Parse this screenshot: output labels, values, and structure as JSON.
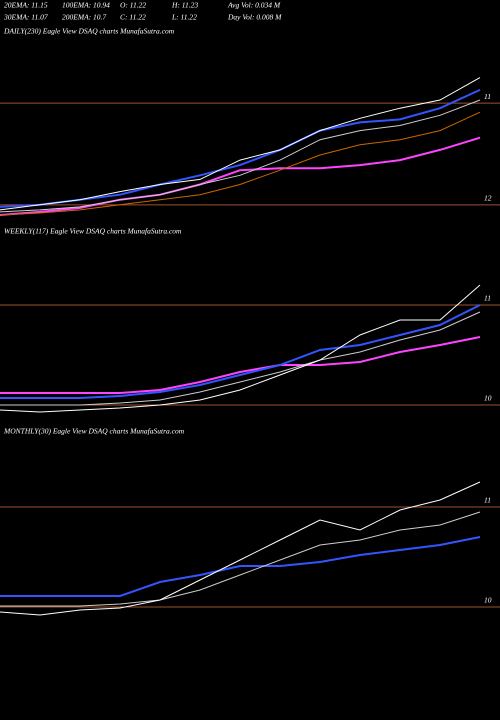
{
  "header": {
    "rows": [
      [
        "20EMA: 11.15",
        "100EMA: 10.94",
        "O: 11.22",
        "H: 11.23",
        "Avg Vol: 0.034  M"
      ],
      [
        "30EMA: 11.07",
        "200EMA: 10.7",
        "C: 11.22",
        "L: 11.22",
        "Day Vol: 0.008  M"
      ]
    ]
  },
  "chart_data": [
    {
      "type": "line",
      "title": "DAILY(230) Eagle  View  DSAQ charts MunafaSutra.com",
      "categories": [
        null,
        null,
        null,
        null,
        null,
        null,
        null,
        null,
        null,
        null,
        null,
        null,
        null
      ],
      "ylim": [
        12.1,
        10.38
      ],
      "yticks": [
        11,
        12
      ],
      "grid": true,
      "grid_color": "#a0522d",
      "series": [
        {
          "color": "#ff44ff",
          "values": [
            12.1,
            12.07,
            12.03,
            11.95,
            11.9,
            11.8,
            11.66,
            11.64,
            11.64,
            11.61,
            11.56,
            11.46,
            11.34
          ]
        },
        {
          "color": "#cc6600",
          "values": [
            12.1,
            12.08,
            12.05,
            12.0,
            11.95,
            11.9,
            11.8,
            11.66,
            11.51,
            11.41,
            11.36,
            11.27,
            11.09
          ]
        },
        {
          "color": "#cccccc",
          "values": [
            12.07,
            12.05,
            12.02,
            11.95,
            11.9,
            11.8,
            11.71,
            11.56,
            11.36,
            11.27,
            11.22,
            11.12,
            10.97
          ]
        },
        {
          "color": "#3355ff",
          "values": [
            12.02,
            12.0,
            11.95,
            11.9,
            11.8,
            11.71,
            11.61,
            11.46,
            11.27,
            11.19,
            11.16,
            11.05,
            10.87
          ]
        },
        {
          "color": "#ffffff",
          "values": [
            12.05,
            12.0,
            11.95,
            11.87,
            11.8,
            11.75,
            11.56,
            11.46,
            11.27,
            11.15,
            11.05,
            10.97,
            10.75
          ]
        }
      ]
    },
    {
      "type": "line",
      "title": "WEEKLY(117) Eagle  View  DSAQ charts MunafaSutra.com",
      "categories": [
        null,
        null,
        null,
        null,
        null,
        null,
        null,
        null,
        null,
        null,
        null,
        null,
        null
      ],
      "ylim": [
        9.9,
        11.65
      ],
      "yticks": [
        11,
        10
      ],
      "grid": true,
      "grid_color": "#a0522d",
      "series": [
        {
          "color": "#ff44ff",
          "values": [
            10.12,
            10.12,
            10.12,
            10.12,
            10.15,
            10.23,
            10.33,
            10.4,
            10.4,
            10.43,
            10.53,
            10.6,
            10.68
          ]
        },
        {
          "color": "#cccccc",
          "values": [
            10.0,
            10.0,
            10.0,
            10.02,
            10.05,
            10.13,
            10.23,
            10.33,
            10.45,
            10.53,
            10.65,
            10.75,
            10.93
          ]
        },
        {
          "color": "#3355ff",
          "values": [
            10.07,
            10.07,
            10.07,
            10.09,
            10.13,
            10.2,
            10.3,
            10.4,
            10.55,
            10.6,
            10.7,
            10.8,
            11.0
          ]
        },
        {
          "color": "#ffffff",
          "values": [
            9.95,
            9.93,
            9.95,
            9.97,
            10.0,
            10.05,
            10.15,
            10.3,
            10.45,
            10.7,
            10.85,
            10.85,
            11.2
          ]
        }
      ]
    },
    {
      "type": "line",
      "title": "MONTHLY(30) Eagle  View  DSAQ charts MunafaSutra.com",
      "categories": [
        null,
        null,
        null,
        null,
        null,
        null,
        null,
        null,
        null,
        null,
        null,
        null,
        null
      ],
      "ylim": [
        9.87,
        11.67
      ],
      "yticks": [
        11,
        10
      ],
      "grid": true,
      "grid_color": "#a0522d",
      "series": [
        {
          "color": "#3355ff",
          "values": [
            10.11,
            10.11,
            10.11,
            10.11,
            10.25,
            10.32,
            10.41,
            10.41,
            10.45,
            10.52,
            10.57,
            10.62,
            10.7
          ]
        },
        {
          "color": "#cccccc",
          "values": [
            10.01,
            10.01,
            10.01,
            10.03,
            10.07,
            10.17,
            10.32,
            10.47,
            10.62,
            10.67,
            10.77,
            10.82,
            10.95
          ]
        },
        {
          "color": "#ffffff",
          "values": [
            9.95,
            9.92,
            9.97,
            9.99,
            10.07,
            10.27,
            10.47,
            10.67,
            10.87,
            10.77,
            10.97,
            11.07,
            11.25
          ]
        }
      ]
    }
  ]
}
